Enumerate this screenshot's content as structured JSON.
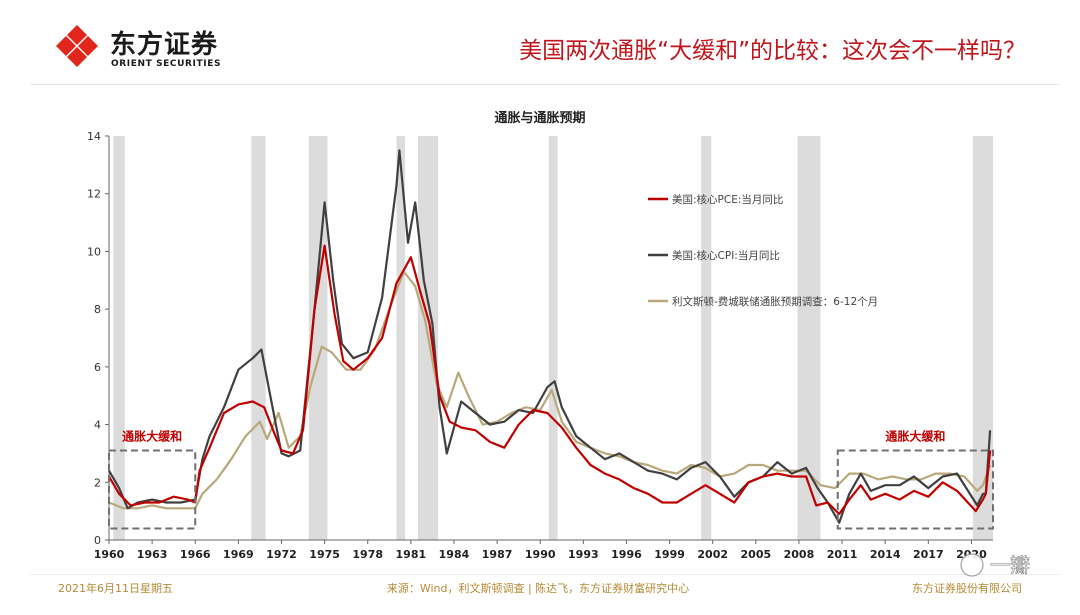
{
  "slide": {
    "brand_cn": "东方证券",
    "brand_en": "ORIENT SECURITIES",
    "headline": "美国两次通胀“大缓和”的比较：这次会不一样吗？",
    "footer_date": "2021年6月11日星期五",
    "footer_source": "来源：Wind，利文斯顿调查 | 陈达飞，东方证券财富研究中心",
    "footer_company": "东方证券股份有限公司",
    "watermark": "一瓣",
    "colors": {
      "brand_red": "#E1261C",
      "headline_red": "#C0161C",
      "annotation_red": "#C00000",
      "footer_gold": "#B58A35"
    }
  },
  "chart_data": {
    "type": "line",
    "title": "通胀与通胀预期",
    "xlabel": "",
    "ylabel": "",
    "xlim": [
      1960,
      2021.5
    ],
    "ylim": [
      0,
      14
    ],
    "grid": false,
    "legend_position": "right",
    "x_ticks": [
      "1960",
      "1963",
      "1966",
      "1969",
      "1972",
      "1975",
      "1978",
      "1981",
      "1984",
      "1987",
      "1990",
      "1993",
      "1996",
      "1999",
      "2002",
      "2005",
      "2008",
      "2011",
      "2014",
      "2017",
      "2020"
    ],
    "y_ticks": [
      "0",
      "2",
      "4",
      "6",
      "8",
      "10",
      "12",
      "14"
    ],
    "recessions": [
      [
        1960.3,
        1961.1
      ],
      [
        1969.9,
        1970.9
      ],
      [
        1973.9,
        1975.2
      ],
      [
        1980.0,
        1980.6
      ],
      [
        1981.5,
        1982.9
      ],
      [
        1990.6,
        1991.2
      ],
      [
        2001.2,
        2001.9
      ],
      [
        2007.9,
        2009.5
      ],
      [
        2020.1,
        2021.5
      ]
    ],
    "annotations": [
      {
        "label": "通胀大缓和",
        "x_range": [
          1960.0,
          1966.0
        ],
        "y_range": [
          0.4,
          3.1
        ]
      },
      {
        "label": "通胀大缓和",
        "x_range": [
          2010.7,
          2021.5
        ],
        "y_range": [
          0.4,
          3.1
        ]
      }
    ],
    "series": [
      {
        "name": "美国:核心PCE:当月同比",
        "color": "#C00000",
        "points": [
          [
            1960,
            2.2
          ],
          [
            1960.7,
            1.6
          ],
          [
            1961.5,
            1.2
          ],
          [
            1962.5,
            1.3
          ],
          [
            1963.5,
            1.3
          ],
          [
            1964.5,
            1.5
          ],
          [
            1965.5,
            1.4
          ],
          [
            1966,
            1.3
          ],
          [
            1966.3,
            2.4
          ],
          [
            1967,
            3.2
          ],
          [
            1968,
            4.4
          ],
          [
            1969,
            4.7
          ],
          [
            1970,
            4.8
          ],
          [
            1970.8,
            4.6
          ],
          [
            1971.5,
            3.7
          ],
          [
            1972,
            3.1
          ],
          [
            1972.8,
            3.0
          ],
          [
            1973.5,
            3.8
          ],
          [
            1974.3,
            8.0
          ],
          [
            1975,
            10.2
          ],
          [
            1975.7,
            7.8
          ],
          [
            1976.3,
            6.2
          ],
          [
            1977,
            5.9
          ],
          [
            1978,
            6.3
          ],
          [
            1979,
            7.0
          ],
          [
            1980,
            8.9
          ],
          [
            1981,
            9.8
          ],
          [
            1981.6,
            8.7
          ],
          [
            1982.3,
            7.5
          ],
          [
            1983,
            5.0
          ],
          [
            1983.7,
            4.1
          ],
          [
            1984.5,
            3.9
          ],
          [
            1985.5,
            3.8
          ],
          [
            1986.5,
            3.4
          ],
          [
            1987.5,
            3.2
          ],
          [
            1988.5,
            4.0
          ],
          [
            1989.5,
            4.5
          ],
          [
            1990.5,
            4.4
          ],
          [
            1991.5,
            3.9
          ],
          [
            1992.5,
            3.2
          ],
          [
            1993.5,
            2.6
          ],
          [
            1994.5,
            2.3
          ],
          [
            1995.5,
            2.1
          ],
          [
            1996.5,
            1.8
          ],
          [
            1997.5,
            1.6
          ],
          [
            1998.5,
            1.3
          ],
          [
            1999.5,
            1.3
          ],
          [
            2000.5,
            1.6
          ],
          [
            2001.5,
            1.9
          ],
          [
            2002.5,
            1.6
          ],
          [
            2003.5,
            1.3
          ],
          [
            2004.5,
            2.0
          ],
          [
            2005.5,
            2.2
          ],
          [
            2006.5,
            2.3
          ],
          [
            2007.5,
            2.2
          ],
          [
            2008.5,
            2.2
          ],
          [
            2009.2,
            1.2
          ],
          [
            2010,
            1.3
          ],
          [
            2010.8,
            0.9
          ],
          [
            2011.5,
            1.4
          ],
          [
            2012.3,
            1.9
          ],
          [
            2013,
            1.4
          ],
          [
            2014,
            1.6
          ],
          [
            2015,
            1.4
          ],
          [
            2016,
            1.7
          ],
          [
            2017,
            1.5
          ],
          [
            2018,
            2.0
          ],
          [
            2019,
            1.7
          ],
          [
            2020.3,
            1.0
          ],
          [
            2020.8,
            1.4
          ],
          [
            2021,
            1.6
          ],
          [
            2021.3,
            3.1
          ]
        ]
      },
      {
        "name": "美国:核心CPI:当月同比",
        "color": "#404040",
        "points": [
          [
            1960,
            2.4
          ],
          [
            1960.7,
            1.8
          ],
          [
            1961.3,
            1.1
          ],
          [
            1962,
            1.3
          ],
          [
            1963,
            1.4
          ],
          [
            1964,
            1.3
          ],
          [
            1965,
            1.3
          ],
          [
            1966,
            1.4
          ],
          [
            1966.5,
            2.8
          ],
          [
            1967,
            3.6
          ],
          [
            1968,
            4.6
          ],
          [
            1969,
            5.9
          ],
          [
            1970,
            6.3
          ],
          [
            1970.6,
            6.6
          ],
          [
            1971.3,
            4.8
          ],
          [
            1972,
            3.0
          ],
          [
            1972.5,
            2.9
          ],
          [
            1973.3,
            3.1
          ],
          [
            1974.3,
            8.0
          ],
          [
            1975,
            11.7
          ],
          [
            1975.6,
            9.0
          ],
          [
            1976.2,
            6.8
          ],
          [
            1977,
            6.3
          ],
          [
            1978,
            6.5
          ],
          [
            1979,
            8.4
          ],
          [
            1980,
            12.3
          ],
          [
            1980.2,
            13.5
          ],
          [
            1980.8,
            10.3
          ],
          [
            1981.3,
            11.7
          ],
          [
            1981.9,
            9.0
          ],
          [
            1982.5,
            7.5
          ],
          [
            1983,
            4.6
          ],
          [
            1983.5,
            3.0
          ],
          [
            1984.5,
            4.8
          ],
          [
            1985.5,
            4.4
          ],
          [
            1986.5,
            4.0
          ],
          [
            1987.5,
            4.1
          ],
          [
            1988.5,
            4.5
          ],
          [
            1989.5,
            4.4
          ],
          [
            1990.5,
            5.3
          ],
          [
            1991,
            5.5
          ],
          [
            1991.5,
            4.6
          ],
          [
            1992.5,
            3.6
          ],
          [
            1993.5,
            3.2
          ],
          [
            1994.5,
            2.8
          ],
          [
            1995.5,
            3.0
          ],
          [
            1996.5,
            2.7
          ],
          [
            1997.5,
            2.4
          ],
          [
            1998.5,
            2.3
          ],
          [
            1999.5,
            2.1
          ],
          [
            2000.5,
            2.5
          ],
          [
            2001.5,
            2.7
          ],
          [
            2002.5,
            2.2
          ],
          [
            2003.5,
            1.5
          ],
          [
            2004.5,
            2.0
          ],
          [
            2005.5,
            2.2
          ],
          [
            2006.5,
            2.7
          ],
          [
            2007.5,
            2.3
          ],
          [
            2008.5,
            2.5
          ],
          [
            2009.3,
            1.8
          ],
          [
            2010,
            1.3
          ],
          [
            2010.8,
            0.6
          ],
          [
            2011.5,
            1.6
          ],
          [
            2012.3,
            2.3
          ],
          [
            2013,
            1.7
          ],
          [
            2014,
            1.9
          ],
          [
            2015,
            1.9
          ],
          [
            2016,
            2.2
          ],
          [
            2017,
            1.8
          ],
          [
            2018,
            2.2
          ],
          [
            2019,
            2.3
          ],
          [
            2020.4,
            1.2
          ],
          [
            2020.8,
            1.6
          ],
          [
            2021,
            1.6
          ],
          [
            2021.3,
            3.8
          ]
        ]
      },
      {
        "name": "利文斯顿-费城联储通胀预期调查：6-12个月",
        "color": "#B8A87A",
        "points": [
          [
            1960,
            1.3
          ],
          [
            1961,
            1.1
          ],
          [
            1962,
            1.1
          ],
          [
            1963,
            1.2
          ],
          [
            1964,
            1.1
          ],
          [
            1965,
            1.1
          ],
          [
            1966,
            1.1
          ],
          [
            1966.5,
            1.6
          ],
          [
            1967.5,
            2.1
          ],
          [
            1968.5,
            2.8
          ],
          [
            1969.5,
            3.6
          ],
          [
            1970.5,
            4.1
          ],
          [
            1971,
            3.5
          ],
          [
            1971.8,
            4.4
          ],
          [
            1972.5,
            3.2
          ],
          [
            1973.3,
            3.6
          ],
          [
            1974,
            5.3
          ],
          [
            1974.8,
            6.7
          ],
          [
            1975.5,
            6.5
          ],
          [
            1976.5,
            5.9
          ],
          [
            1977.5,
            5.9
          ],
          [
            1978.5,
            6.6
          ],
          [
            1979.5,
            8.0
          ],
          [
            1980.5,
            9.3
          ],
          [
            1981.3,
            8.8
          ],
          [
            1982,
            7.6
          ],
          [
            1982.8,
            5.4
          ],
          [
            1983.5,
            4.6
          ],
          [
            1984.3,
            5.8
          ],
          [
            1985,
            5.0
          ],
          [
            1986,
            4.0
          ],
          [
            1987,
            4.1
          ],
          [
            1988,
            4.4
          ],
          [
            1989,
            4.6
          ],
          [
            1990,
            4.5
          ],
          [
            1990.8,
            5.2
          ],
          [
            1991.5,
            4.1
          ],
          [
            1992.5,
            3.4
          ],
          [
            1993.5,
            3.2
          ],
          [
            1994.5,
            3.0
          ],
          [
            1995.5,
            2.9
          ],
          [
            1996.5,
            2.7
          ],
          [
            1997.5,
            2.6
          ],
          [
            1998.5,
            2.4
          ],
          [
            1999.5,
            2.3
          ],
          [
            2000.5,
            2.6
          ],
          [
            2001.5,
            2.5
          ],
          [
            2002.5,
            2.2
          ],
          [
            2003.5,
            2.3
          ],
          [
            2004.5,
            2.6
          ],
          [
            2005.5,
            2.6
          ],
          [
            2006.5,
            2.4
          ],
          [
            2007.5,
            2.4
          ],
          [
            2008.5,
            2.4
          ],
          [
            2009.5,
            1.9
          ],
          [
            2010.5,
            1.8
          ],
          [
            2011.5,
            2.3
          ],
          [
            2012.5,
            2.3
          ],
          [
            2013.5,
            2.1
          ],
          [
            2014.5,
            2.2
          ],
          [
            2015.5,
            2.1
          ],
          [
            2016.5,
            2.1
          ],
          [
            2017.5,
            2.3
          ],
          [
            2018.5,
            2.3
          ],
          [
            2019.5,
            2.2
          ],
          [
            2020.4,
            1.7
          ],
          [
            2020.8,
            1.9
          ],
          [
            2021.3,
            2.6
          ]
        ]
      }
    ]
  }
}
